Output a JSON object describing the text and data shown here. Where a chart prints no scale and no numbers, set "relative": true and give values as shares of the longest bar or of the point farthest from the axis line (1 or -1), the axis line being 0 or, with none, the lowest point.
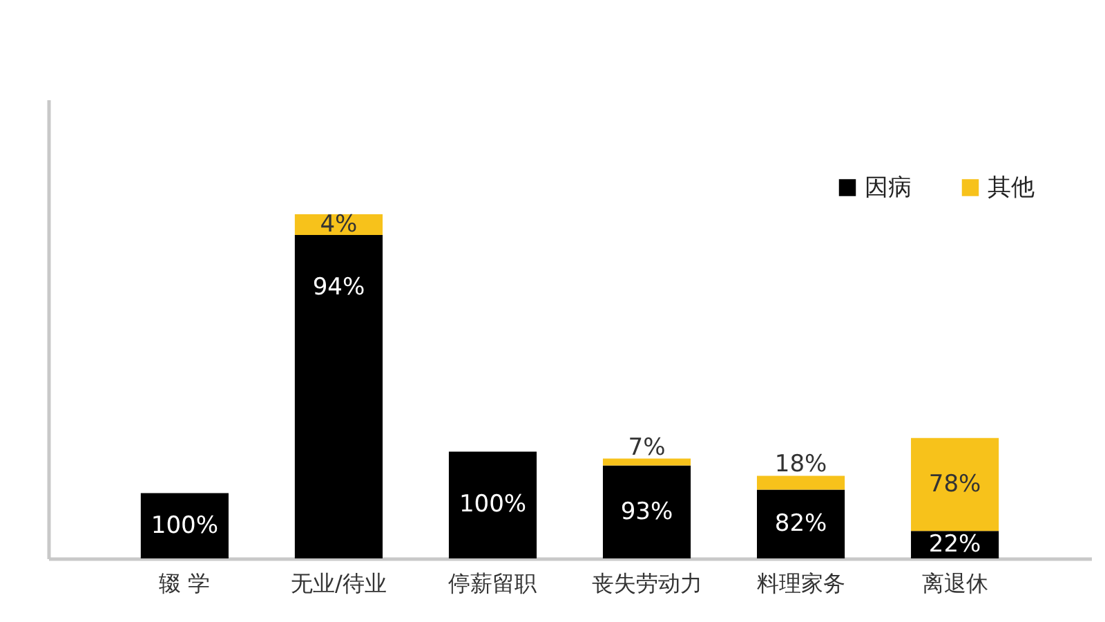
{
  "chart_data": {
    "type": "bar",
    "stacked": true,
    "relative": true,
    "legend": "top right",
    "categories": [
      "辍 学",
      "无业/待业",
      "停薪留职",
      "丧失劳动力",
      "料理家务",
      "离退休"
    ],
    "series": [
      {
        "name": "因病",
        "color": "#000000",
        "values": [
          0.19,
          0.94,
          0.31,
          0.27,
          0.2,
          0.08
        ]
      },
      {
        "name": "其他",
        "color": "#f7c21b",
        "values": [
          null,
          0.06,
          null,
          0.02,
          0.04,
          0.27
        ]
      }
    ],
    "annotations": [
      {
        "text": "100%",
        "x": "辍 学",
        "y": 0.19
      },
      {
        "text": "94%",
        "x": "无业/待业",
        "y": 0.94
      },
      {
        "text": "4%",
        "x": "无业/待业",
        "y": 1.0
      },
      {
        "text": "100%",
        "x": "停薪留职",
        "y": 0.31
      },
      {
        "text": "93%",
        "x": "丧失劳动力",
        "y": 0.27
      },
      {
        "text": "7%",
        "x": "丧失劳动力",
        "y": 0.29
      },
      {
        "text": "82%",
        "x": "料理家务",
        "y": 0.2
      },
      {
        "text": "18%",
        "x": "料理家务",
        "y": 0.24
      },
      {
        "text": "22%",
        "x": "离退休",
        "y": 0.08
      },
      {
        "text": "78%",
        "x": "离退休",
        "y": 0.35
      }
    ]
  }
}
